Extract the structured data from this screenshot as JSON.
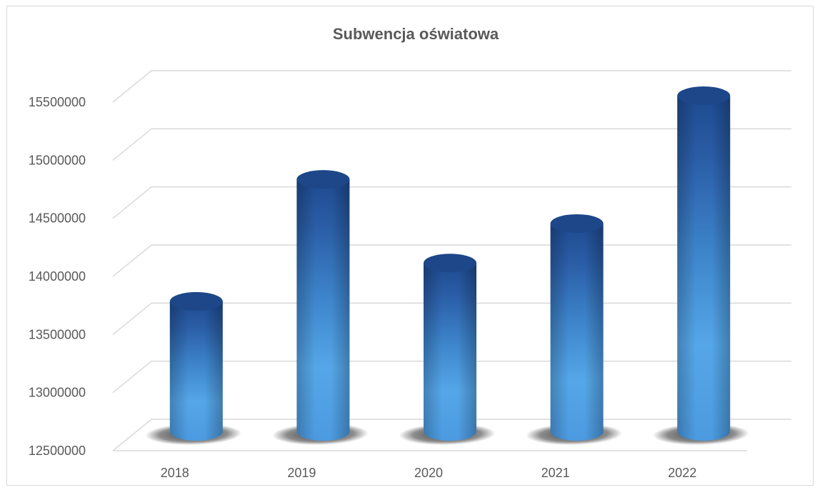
{
  "chart_data": {
    "type": "bar",
    "style": "3d-cylinder",
    "title": "Subwencja oświatowa",
    "xlabel": "",
    "ylabel": "",
    "categories": [
      "2018",
      "2019",
      "2020",
      "2021",
      "2022"
    ],
    "series": [
      {
        "values": [
          13650000,
          14700000,
          13980000,
          14320000,
          15420000
        ]
      }
    ],
    "y_ticks": [
      "12500000",
      "13000000",
      "13500000",
      "14000000",
      "14500000",
      "15000000",
      "15500000"
    ],
    "ylim": [
      12500000,
      15500000
    ],
    "grid": true,
    "legend": "none",
    "colors": {
      "bar_dark": "#1F4E96",
      "bar_light": "#5AAEEE",
      "gridline": "#d9d9d9",
      "text": "#595959"
    }
  }
}
